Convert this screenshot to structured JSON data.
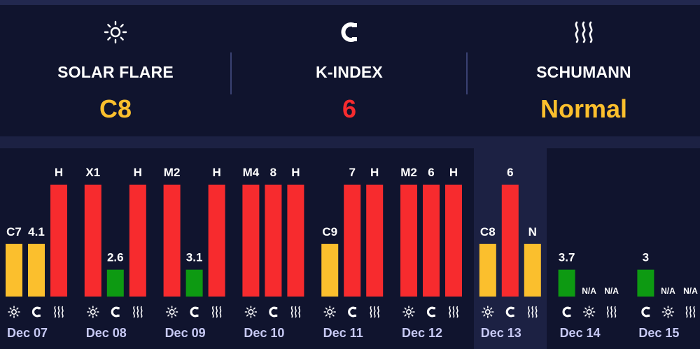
{
  "summary": {
    "solar": {
      "icon": "sun-icon",
      "label": "SOLAR FLARE",
      "value": "C8",
      "color": "#fbbf2d"
    },
    "kindex": {
      "icon": "magnet-icon",
      "label": "K-INDEX",
      "value": "6",
      "color": "#f72b2e"
    },
    "schumann": {
      "icon": "waves-icon",
      "label": "SCHUMANN",
      "value": "Normal",
      "color": "#fbbf2d"
    }
  },
  "colors": {
    "red": "#f72b2e",
    "yellow": "#fbbf2d",
    "green": "#0d9a12",
    "panel": "#10142e",
    "highlight": "#1c2143"
  },
  "chart_data": {
    "type": "bar",
    "title": "",
    "categories": [
      "Dec 07",
      "Dec 08",
      "Dec 09",
      "Dec 10",
      "Dec 11",
      "Dec 12",
      "Dec 13",
      "Dec 14",
      "Dec 15"
    ],
    "highlight": "Dec 13",
    "ylim": [
      0,
      1
    ],
    "series": [
      {
        "name": "Solar Flare",
        "icon": "sun-icon",
        "labels": [
          "C7",
          "X1",
          "M2",
          "M4",
          "C9",
          "M2",
          "C8",
          "N/A",
          "N/A"
        ],
        "levels": [
          0.47,
          1,
          1,
          1,
          0.47,
          1,
          0.47,
          0,
          0
        ],
        "colors": [
          "yellow",
          "red",
          "red",
          "red",
          "yellow",
          "red",
          "yellow",
          "none",
          "none"
        ]
      },
      {
        "name": "K-Index",
        "icon": "magnet-icon",
        "labels": [
          "4.1",
          "2.6",
          "3.1",
          "8",
          "7",
          "6",
          "6",
          "3.7",
          "3"
        ],
        "levels": [
          0.47,
          0.24,
          0.24,
          1,
          1,
          1,
          1,
          0.24,
          0.24
        ],
        "colors": [
          "yellow",
          "green",
          "green",
          "red",
          "red",
          "red",
          "red",
          "green",
          "green"
        ]
      },
      {
        "name": "Schumann",
        "icon": "waves-icon",
        "labels": [
          "H",
          "H",
          "H",
          "H",
          "H",
          "H",
          "N",
          "N/A",
          "N/A"
        ],
        "levels": [
          1,
          1,
          1,
          1,
          1,
          1,
          0.47,
          0,
          0
        ],
        "colors": [
          "red",
          "red",
          "red",
          "red",
          "red",
          "red",
          "yellow",
          "none",
          "none"
        ]
      }
    ],
    "order": [
      [
        "Solar Flare",
        "K-Index",
        "Schumann"
      ],
      [
        "Solar Flare",
        "K-Index",
        "Schumann"
      ],
      [
        "Solar Flare",
        "K-Index",
        "Schumann"
      ],
      [
        "Solar Flare",
        "K-Index",
        "Schumann"
      ],
      [
        "Solar Flare",
        "K-Index",
        "Schumann"
      ],
      [
        "Solar Flare",
        "K-Index",
        "Schumann"
      ],
      [
        "Solar Flare",
        "K-Index",
        "Schumann"
      ],
      [
        "K-Index",
        "Solar Flare",
        "Schumann"
      ],
      [
        "K-Index",
        "Solar Flare",
        "Schumann"
      ]
    ]
  }
}
